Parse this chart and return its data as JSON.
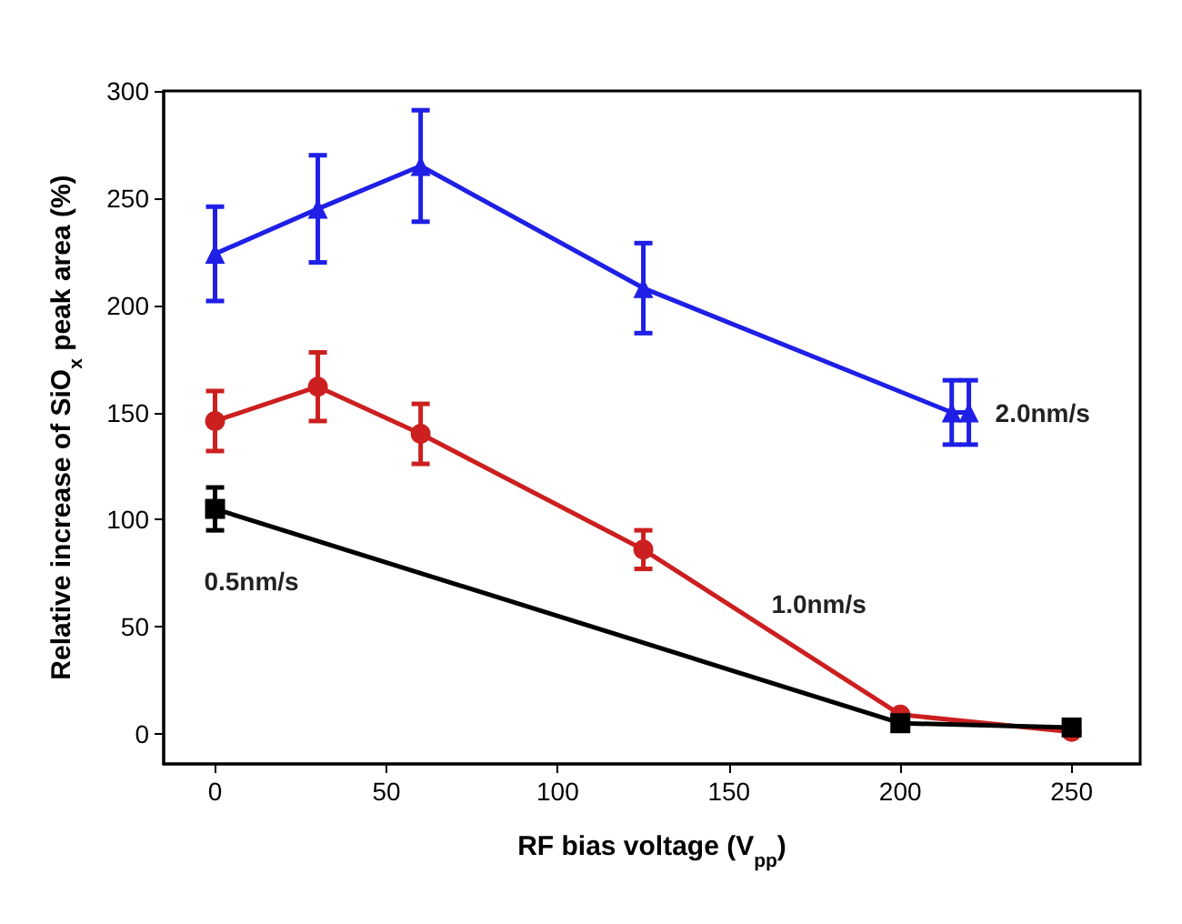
{
  "chart_data": {
    "type": "line",
    "xlabel": "RF bias voltage (V$_{pp}$)",
    "ylabel": "Relative increase of SiO$_{x}$ peak area (%)",
    "xlim": [
      -15,
      270
    ],
    "xticks": [
      0,
      50,
      100,
      150,
      200,
      250
    ],
    "ylim": [
      -14,
      300
    ],
    "yticks": [
      0,
      50,
      100,
      150,
      200,
      250,
      300
    ],
    "line_style": "solid",
    "series": [
      {
        "name": "0.5nm/s",
        "color": "#000000",
        "marker": "square",
        "x": [
          0,
          200,
          250
        ],
        "values": [
          105,
          5,
          3
        ],
        "errors": [
          10,
          null,
          null
        ]
      },
      {
        "name": "1.0nm/s",
        "color": "#cc1f1f",
        "marker": "circle",
        "x": [
          0,
          30,
          60,
          125,
          200,
          250
        ],
        "values": [
          146,
          162,
          140,
          86,
          9,
          1
        ],
        "errors": [
          14,
          16,
          14,
          9,
          null,
          null
        ]
      },
      {
        "name": "2.0nm/s",
        "color": "#1f1fe6",
        "marker": "triangle",
        "x": [
          0,
          30,
          60,
          125,
          215,
          220
        ],
        "values": [
          224,
          245,
          265,
          208,
          150,
          150
        ],
        "errors": [
          22,
          25,
          26,
          21,
          15,
          15
        ]
      }
    ]
  }
}
